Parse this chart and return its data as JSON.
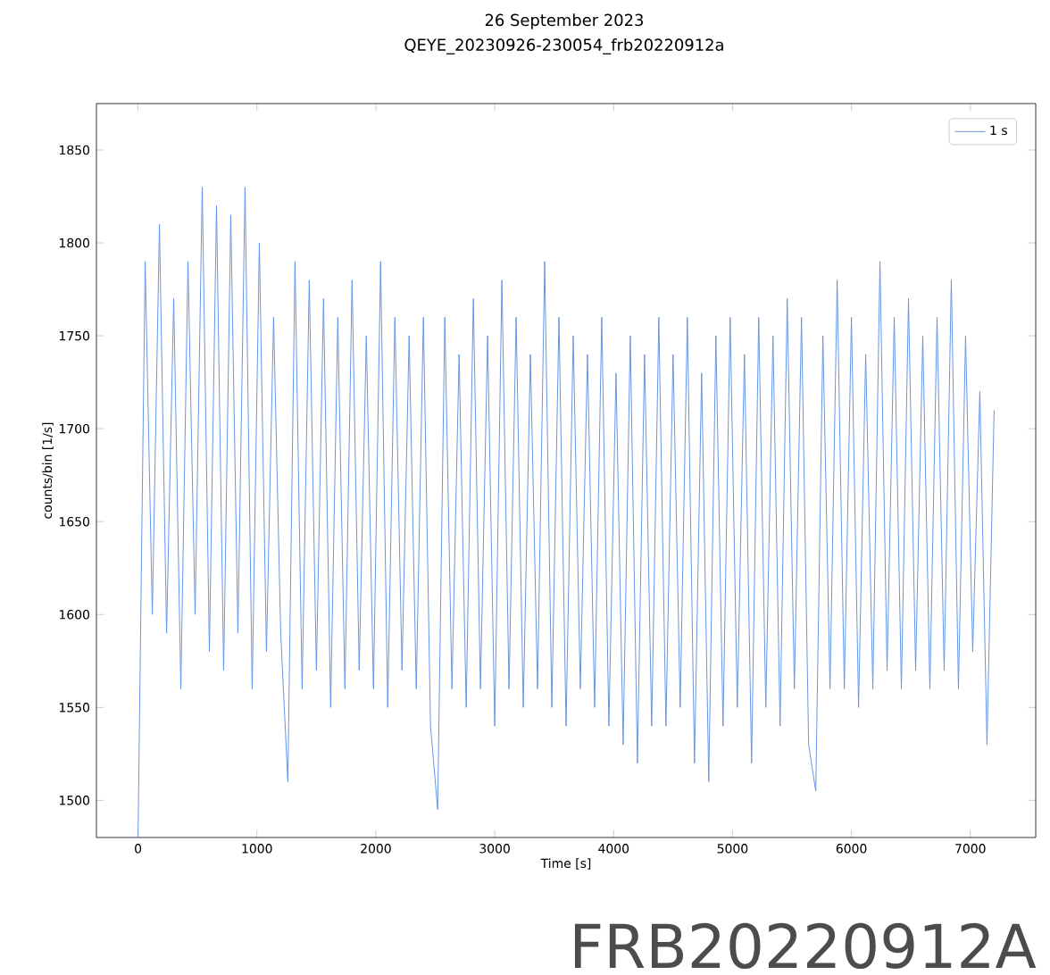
{
  "chart_data": {
    "type": "line",
    "title": "26 September 2023",
    "subtitle": "QEYE_20230926-230054_frb20220912a",
    "xlabel": "Time [s]",
    "ylabel": "counts/bin [1/s]",
    "xlim": [
      -350,
      7550
    ],
    "ylim": [
      1480,
      1875
    ],
    "xticks": [
      0,
      1000,
      2000,
      3000,
      4000,
      5000,
      6000,
      7000
    ],
    "yticks": [
      1500,
      1550,
      1600,
      1650,
      1700,
      1750,
      1800,
      1850
    ],
    "legend": "top right",
    "marker": "none",
    "line_style": "solid",
    "grid": false,
    "annotations": [
      "FRB20220912A"
    ],
    "series": [
      {
        "name": "1 s",
        "color": "#6495e6",
        "x": [
          0,
          60,
          120,
          180,
          240,
          300,
          360,
          420,
          480,
          540,
          600,
          660,
          720,
          780,
          840,
          900,
          960,
          1020,
          1080,
          1140,
          1200,
          1260,
          1320,
          1380,
          1440,
          1500,
          1560,
          1620,
          1680,
          1740,
          1800,
          1860,
          1920,
          1980,
          2040,
          2100,
          2160,
          2220,
          2280,
          2340,
          2400,
          2460,
          2520,
          2580,
          2640,
          2700,
          2760,
          2820,
          2880,
          2940,
          3000,
          3060,
          3120,
          3180,
          3240,
          3300,
          3360,
          3420,
          3480,
          3540,
          3600,
          3660,
          3720,
          3780,
          3840,
          3900,
          3960,
          4020,
          4080,
          4140,
          4200,
          4260,
          4320,
          4380,
          4440,
          4500,
          4560,
          4620,
          4680,
          4740,
          4800,
          4860,
          4920,
          4980,
          5040,
          5100,
          5160,
          5220,
          5280,
          5340,
          5400,
          5460,
          5520,
          5580,
          5640,
          5700,
          5760,
          5820,
          5880,
          5940,
          6000,
          6060,
          6120,
          6180,
          6240,
          6300,
          6360,
          6420,
          6480,
          6540,
          6600,
          6660,
          6720,
          6780,
          6840,
          6900,
          6960,
          7020,
          7080,
          7140,
          7200
        ],
        "values": [
          1480,
          1790,
          1600,
          1810,
          1590,
          1770,
          1560,
          1790,
          1600,
          1830,
          1580,
          1820,
          1570,
          1815,
          1590,
          1830,
          1560,
          1800,
          1580,
          1760,
          1590,
          1510,
          1790,
          1560,
          1780,
          1570,
          1770,
          1550,
          1760,
          1560,
          1780,
          1570,
          1750,
          1560,
          1790,
          1550,
          1760,
          1570,
          1750,
          1560,
          1760,
          1540,
          1495,
          1760,
          1560,
          1740,
          1550,
          1770,
          1560,
          1750,
          1540,
          1780,
          1560,
          1760,
          1550,
          1740,
          1560,
          1790,
          1550,
          1760,
          1540,
          1750,
          1560,
          1740,
          1550,
          1760,
          1540,
          1730,
          1530,
          1750,
          1520,
          1740,
          1540,
          1760,
          1540,
          1740,
          1550,
          1760,
          1520,
          1730,
          1510,
          1750,
          1540,
          1760,
          1550,
          1740,
          1520,
          1760,
          1550,
          1750,
          1540,
          1770,
          1560,
          1760,
          1530,
          1505,
          1750,
          1560,
          1780,
          1560,
          1760,
          1550,
          1740,
          1560,
          1790,
          1570,
          1760,
          1560,
          1770,
          1570,
          1750,
          1560,
          1760,
          1570,
          1780,
          1560,
          1750,
          1580,
          1720,
          1530,
          1710
        ]
      }
    ]
  }
}
